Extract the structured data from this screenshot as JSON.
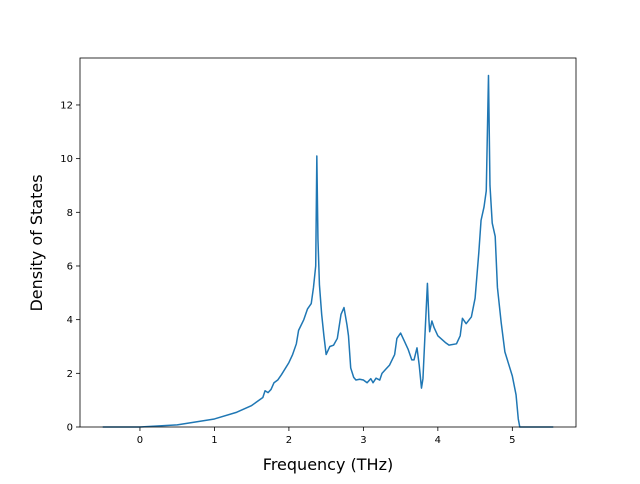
{
  "chart_data": {
    "type": "line",
    "xlabel": "Frequency (THz)",
    "ylabel": "Density of States",
    "xlim": [
      -0.805,
      5.855
    ],
    "xticks": [
      0,
      1,
      2,
      3,
      4,
      5
    ],
    "ylim": [
      0,
      13.75
    ],
    "yticks": [
      0,
      2,
      4,
      6,
      8,
      10,
      12
    ],
    "grid": false,
    "x": [
      -0.5,
      0,
      0.5,
      1.0,
      1.3,
      1.5,
      1.65,
      1.68,
      1.72,
      1.76,
      1.8,
      1.85,
      1.9,
      2.0,
      2.05,
      2.1,
      2.13,
      2.2,
      2.25,
      2.3,
      2.33,
      2.36,
      2.375,
      2.39,
      2.41,
      2.44,
      2.47,
      2.5,
      2.55,
      2.6,
      2.65,
      2.7,
      2.74,
      2.78,
      2.8,
      2.83,
      2.87,
      2.9,
      2.95,
      3.0,
      3.05,
      3.1,
      3.13,
      3.17,
      3.22,
      3.25,
      3.3,
      3.35,
      3.42,
      3.45,
      3.5,
      3.55,
      3.6,
      3.65,
      3.68,
      3.72,
      3.75,
      3.78,
      3.8,
      3.83,
      3.86,
      3.88,
      3.89,
      3.92,
      3.95,
      4.0,
      4.1,
      4.15,
      4.25,
      4.3,
      4.33,
      4.38,
      4.45,
      4.5,
      4.55,
      4.58,
      4.62,
      4.65,
      4.68,
      4.7,
      4.73,
      4.77,
      4.8,
      4.85,
      4.9,
      5.0,
      5.05,
      5.08,
      5.1,
      5.55
    ],
    "series": [
      {
        "color": "#1f77b4",
        "values": [
          0,
          0,
          0.08,
          0.3,
          0.55,
          0.8,
          1.1,
          1.35,
          1.28,
          1.4,
          1.65,
          1.75,
          1.95,
          2.4,
          2.7,
          3.1,
          3.6,
          4.0,
          4.4,
          4.6,
          5.2,
          6.0,
          10.1,
          7.0,
          5.3,
          4.2,
          3.4,
          2.7,
          3.0,
          3.05,
          3.3,
          4.2,
          4.45,
          3.8,
          3.4,
          2.2,
          1.85,
          1.75,
          1.78,
          1.75,
          1.65,
          1.8,
          1.65,
          1.82,
          1.75,
          2.0,
          2.15,
          2.3,
          2.7,
          3.3,
          3.5,
          3.2,
          2.9,
          2.5,
          2.5,
          2.95,
          2.3,
          1.45,
          1.8,
          3.6,
          5.35,
          4.0,
          3.55,
          3.95,
          3.7,
          3.4,
          3.15,
          3.05,
          3.1,
          3.4,
          4.05,
          3.85,
          4.1,
          4.8,
          6.5,
          7.7,
          8.2,
          8.8,
          13.1,
          9.0,
          7.6,
          7.1,
          5.2,
          3.9,
          2.8,
          1.9,
          1.2,
          0.3,
          0,
          0
        ]
      }
    ]
  }
}
